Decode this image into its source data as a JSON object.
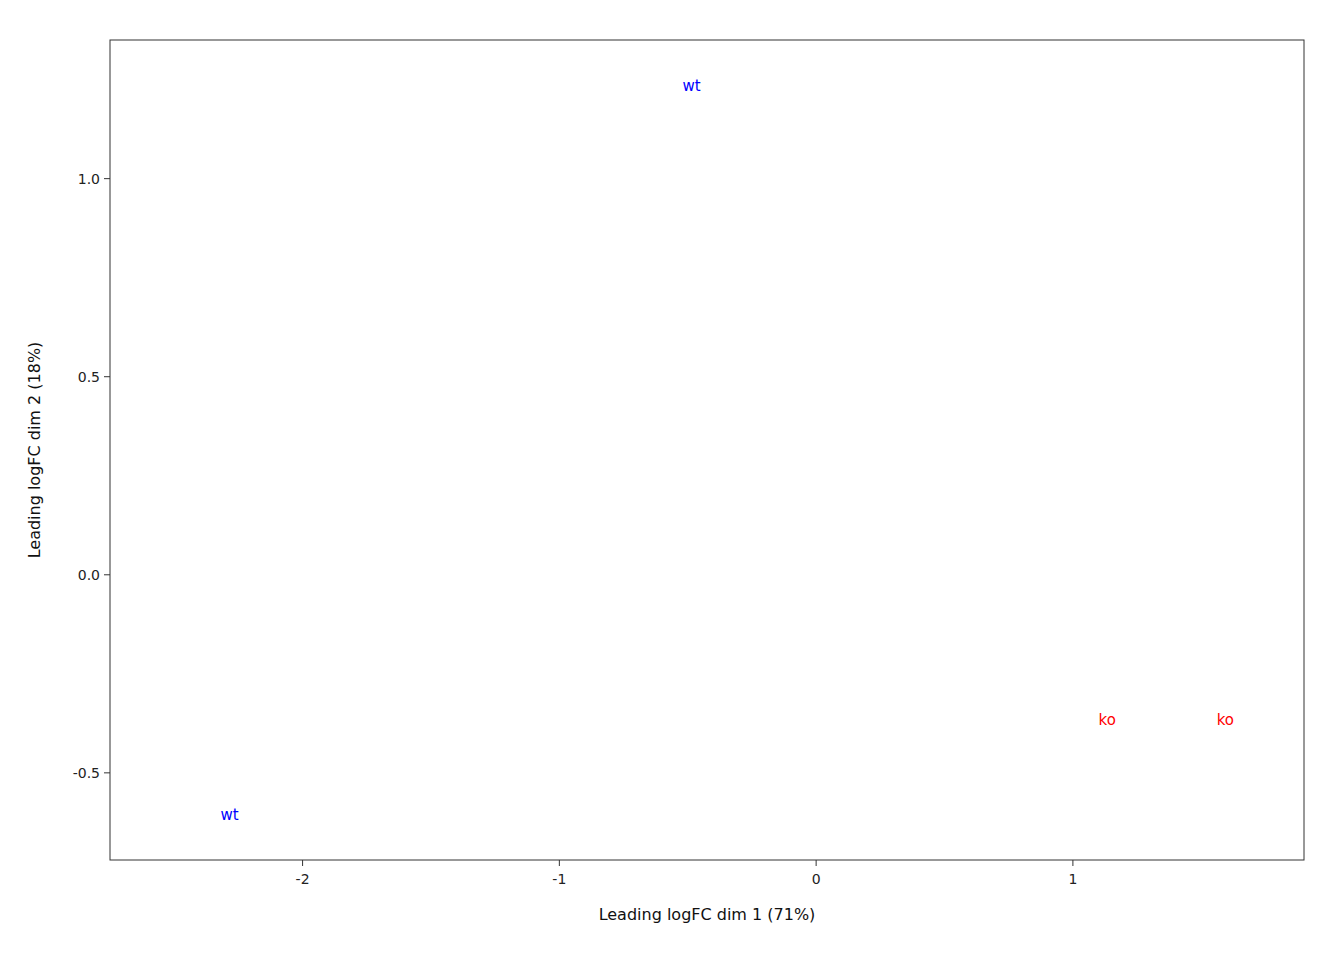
{
  "chart_data": {
    "type": "scatter",
    "x": [
      -0.52,
      -2.32,
      1.1,
      1.56
    ],
    "values": [
      1.22,
      -0.62,
      -0.38,
      -0.38
    ],
    "labels": [
      "wt",
      "wt",
      "ko",
      "ko"
    ],
    "colors": [
      "#0000FF",
      "#0000FF",
      "#FF0000",
      "#FF0000"
    ],
    "xlabel": "Leading logFC dim 1 (71%)",
    "ylabel": "Leading logFC dim 2 (18%)",
    "xlim": [
      -2.75,
      1.9
    ],
    "ylim": [
      -0.72,
      1.35
    ],
    "xticks": [
      -2,
      -1,
      0,
      1
    ],
    "yticks": [
      -0.5,
      {
        "value": 0.0,
        "label": "0.0"
      },
      0.5,
      {
        "value": 1.0,
        "label": "1.0"
      }
    ],
    "grid": false
  }
}
